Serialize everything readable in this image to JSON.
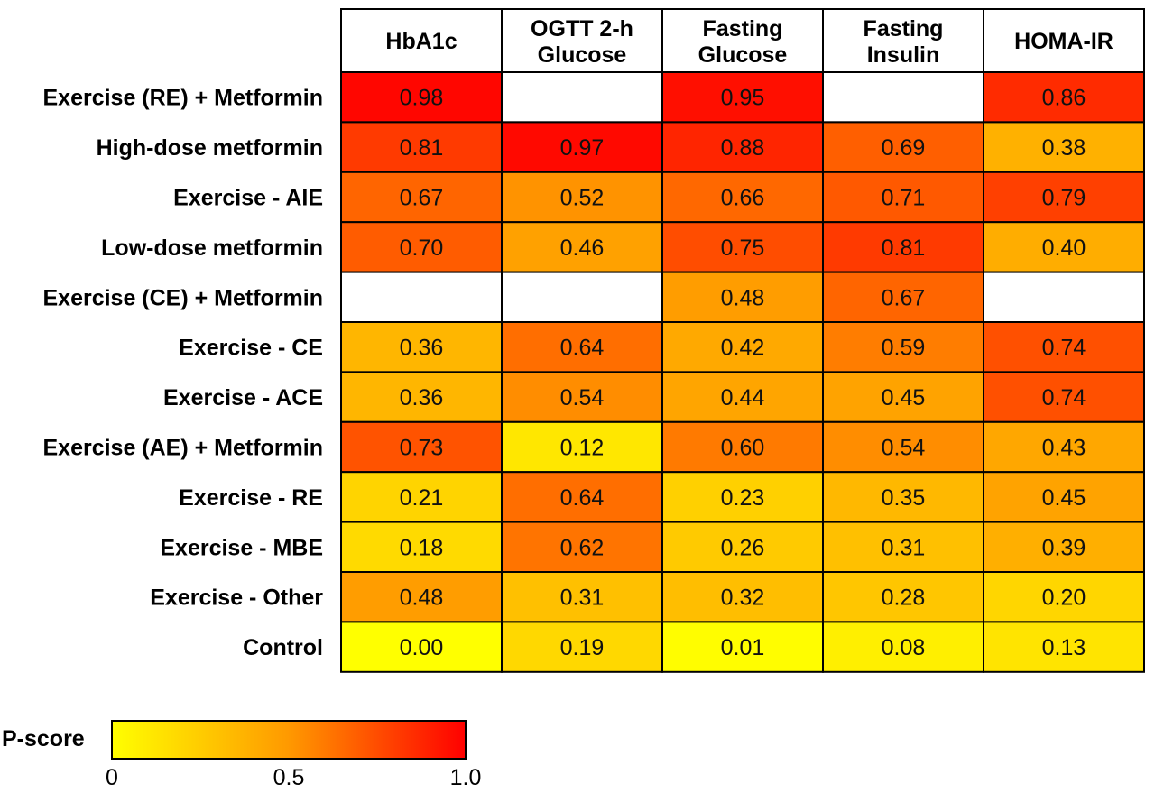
{
  "chart_data": {
    "type": "heatmap",
    "columns": [
      "HbA1c",
      "OGTT 2-h Glucose",
      "Fasting Glucose",
      "Fasting Insulin",
      "HOMA-IR"
    ],
    "column_label_lines": [
      [
        "HbA1c"
      ],
      [
        "OGTT 2-h",
        "Glucose"
      ],
      [
        "Fasting",
        "Glucose"
      ],
      [
        "Fasting",
        "Insulin"
      ],
      [
        "HOMA-IR"
      ]
    ],
    "rows": [
      "Exercise (RE) + Metformin",
      "High-dose metformin",
      "Exercise - AIE",
      "Low-dose metformin",
      "Exercise (CE) + Metformin",
      "Exercise - CE",
      "Exercise - ACE",
      "Exercise (AE) + Metformin",
      "Exercise - RE",
      "Exercise - MBE",
      "Exercise - Other",
      "Control"
    ],
    "values": [
      [
        0.98,
        null,
        0.95,
        null,
        0.86
      ],
      [
        0.81,
        0.97,
        0.88,
        0.69,
        0.38
      ],
      [
        0.67,
        0.52,
        0.66,
        0.71,
        0.79
      ],
      [
        0.7,
        0.46,
        0.75,
        0.81,
        0.4
      ],
      [
        null,
        null,
        0.48,
        0.67,
        null
      ],
      [
        0.36,
        0.64,
        0.42,
        0.59,
        0.74
      ],
      [
        0.36,
        0.54,
        0.44,
        0.45,
        0.74
      ],
      [
        0.73,
        0.12,
        0.6,
        0.54,
        0.43
      ],
      [
        0.21,
        0.64,
        0.23,
        0.35,
        0.45
      ],
      [
        0.18,
        0.62,
        0.26,
        0.31,
        0.39
      ],
      [
        0.48,
        0.31,
        0.32,
        0.28,
        0.2
      ],
      [
        0.0,
        0.19,
        0.01,
        0.08,
        0.13
      ]
    ],
    "value_range": [
      0,
      1.0
    ],
    "colormap": {
      "low": "#ffff00",
      "mid": "#ff9900",
      "high": "#ff0000",
      "missing": "#ffffff"
    },
    "legend": {
      "title": "P-score",
      "ticks": [
        "0",
        "0.5",
        "1.0"
      ],
      "tick_values": [
        0,
        0.5,
        1.0
      ],
      "placement": "bottom-left"
    }
  }
}
